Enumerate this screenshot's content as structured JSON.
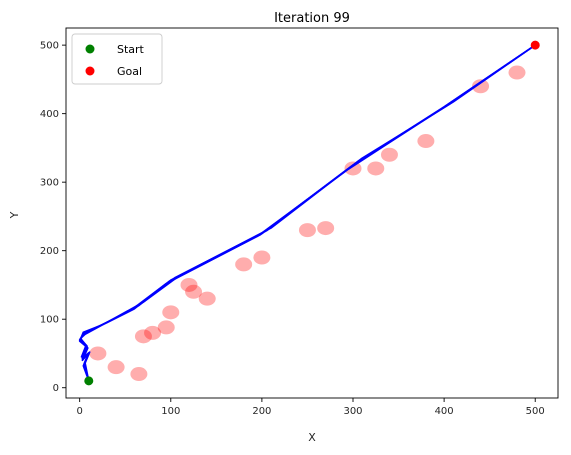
{
  "chart_data": {
    "type": "scatter",
    "title": "Iteration 99",
    "xlabel": "X",
    "ylabel": "Y",
    "xlim": [
      -15,
      525
    ],
    "ylim": [
      -15,
      525
    ],
    "xticks": [
      0,
      100,
      200,
      300,
      400,
      500
    ],
    "yticks": [
      0,
      100,
      200,
      300,
      400,
      500
    ],
    "grid": false,
    "legend_position": "upper-left",
    "start": {
      "name": "Start",
      "x": 10,
      "y": 10,
      "color": "#008000"
    },
    "goal": {
      "name": "Goal",
      "x": 500,
      "y": 500,
      "color": "#ff0000"
    },
    "obstacles": {
      "color": "#ff0000",
      "points": [
        [
          20,
          50
        ],
        [
          40,
          30
        ],
        [
          65,
          20
        ],
        [
          70,
          75
        ],
        [
          80,
          80
        ],
        [
          95,
          88
        ],
        [
          100,
          110
        ],
        [
          120,
          150
        ],
        [
          125,
          140
        ],
        [
          140,
          130
        ],
        [
          180,
          180
        ],
        [
          200,
          190
        ],
        [
          250,
          230
        ],
        [
          270,
          233
        ],
        [
          300,
          320
        ],
        [
          325,
          320
        ],
        [
          340,
          340
        ],
        [
          380,
          360
        ],
        [
          440,
          440
        ],
        [
          480,
          460
        ]
      ]
    },
    "paths": {
      "color": "#0000ff",
      "series": [
        {
          "values": [
            [
              10,
              10
            ],
            [
              5,
              35
            ],
            [
              10,
              50
            ],
            [
              3,
              42
            ],
            [
              8,
              60
            ],
            [
              0,
              70
            ],
            [
              5,
              80
            ],
            [
              30,
              95
            ],
            [
              60,
              115
            ],
            [
              100,
              157
            ],
            [
              200,
              225
            ],
            [
              300,
              325
            ],
            [
              400,
              410
            ],
            [
              500,
              500
            ]
          ]
        },
        {
          "values": [
            [
              10,
              10
            ],
            [
              4,
              32
            ],
            [
              9,
              48
            ],
            [
              2,
              45
            ],
            [
              7,
              62
            ],
            [
              1,
              72
            ],
            [
              6,
              78
            ],
            [
              35,
              99
            ],
            [
              70,
              125
            ],
            [
              110,
              164
            ],
            [
              210,
              233
            ],
            [
              305,
              330
            ],
            [
              405,
              413
            ],
            [
              500,
              500
            ]
          ]
        },
        {
          "values": [
            [
              10,
              10
            ],
            [
              6,
              36
            ],
            [
              11,
              52
            ],
            [
              3,
              40
            ],
            [
              9,
              58
            ],
            [
              0,
              68
            ],
            [
              4,
              81
            ],
            [
              25,
              92
            ],
            [
              55,
              112
            ],
            [
              95,
              152
            ],
            [
              195,
              221
            ],
            [
              295,
              319
            ],
            [
              395,
              405
            ],
            [
              500,
              500
            ]
          ]
        },
        {
          "values": [
            [
              10,
              10
            ],
            [
              5,
              34
            ],
            [
              10,
              49
            ],
            [
              4,
              44
            ],
            [
              8,
              61
            ],
            [
              1,
              71
            ],
            [
              5,
              79
            ],
            [
              32,
              97
            ],
            [
              65,
              120
            ],
            [
              105,
              161
            ],
            [
              205,
              229
            ],
            [
              310,
              335
            ],
            [
              410,
              417
            ],
            [
              500,
              500
            ]
          ]
        },
        {
          "values": [
            [
              10,
              10
            ],
            [
              5,
              35
            ],
            [
              10,
              51
            ],
            [
              3,
              43
            ],
            [
              8,
              60
            ],
            [
              0,
              69
            ],
            [
              5,
              80
            ],
            [
              28,
              94
            ],
            [
              58,
              114
            ],
            [
              98,
              155
            ],
            [
              198,
              223
            ],
            [
              298,
              323
            ],
            [
              398,
              408
            ],
            [
              500,
              500
            ]
          ]
        }
      ]
    }
  }
}
